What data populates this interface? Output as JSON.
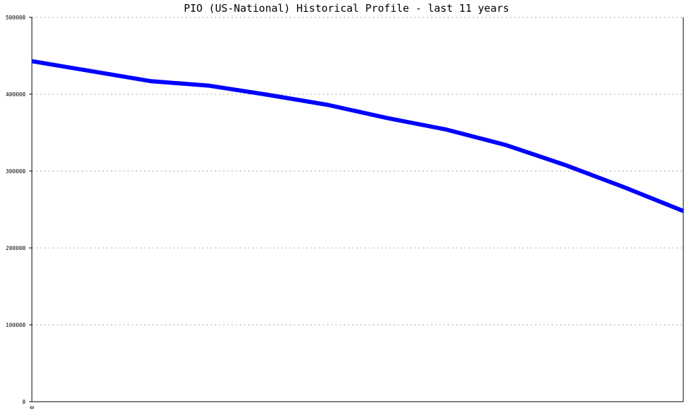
{
  "colors": {
    "background": "#ffffff",
    "series": "#0000ff",
    "grid": "#aaaaaa",
    "axis": "#000000",
    "text": "#000000"
  },
  "chart_data": {
    "type": "line",
    "title": "PIO (US-National) Historical Profile - last 11 years",
    "xlabel": "",
    "ylabel": "",
    "ylim": [
      0,
      500000
    ],
    "yticks": [
      0,
      100000,
      200000,
      300000,
      400000,
      500000
    ],
    "ytick_labels": [
      "0",
      "100000",
      "200000",
      "300000",
      "400000",
      "500000"
    ],
    "xtick_labels": [
      "0"
    ],
    "grid": true,
    "legend": "none",
    "x": [
      0,
      1,
      2,
      3,
      4,
      5,
      6,
      7,
      8,
      9,
      10,
      11
    ],
    "series": [
      {
        "values": [
          443000,
          430000,
          417000,
          411000,
          399000,
          386000,
          369000,
          354000,
          334000,
          308000,
          279000,
          248000
        ]
      }
    ]
  }
}
